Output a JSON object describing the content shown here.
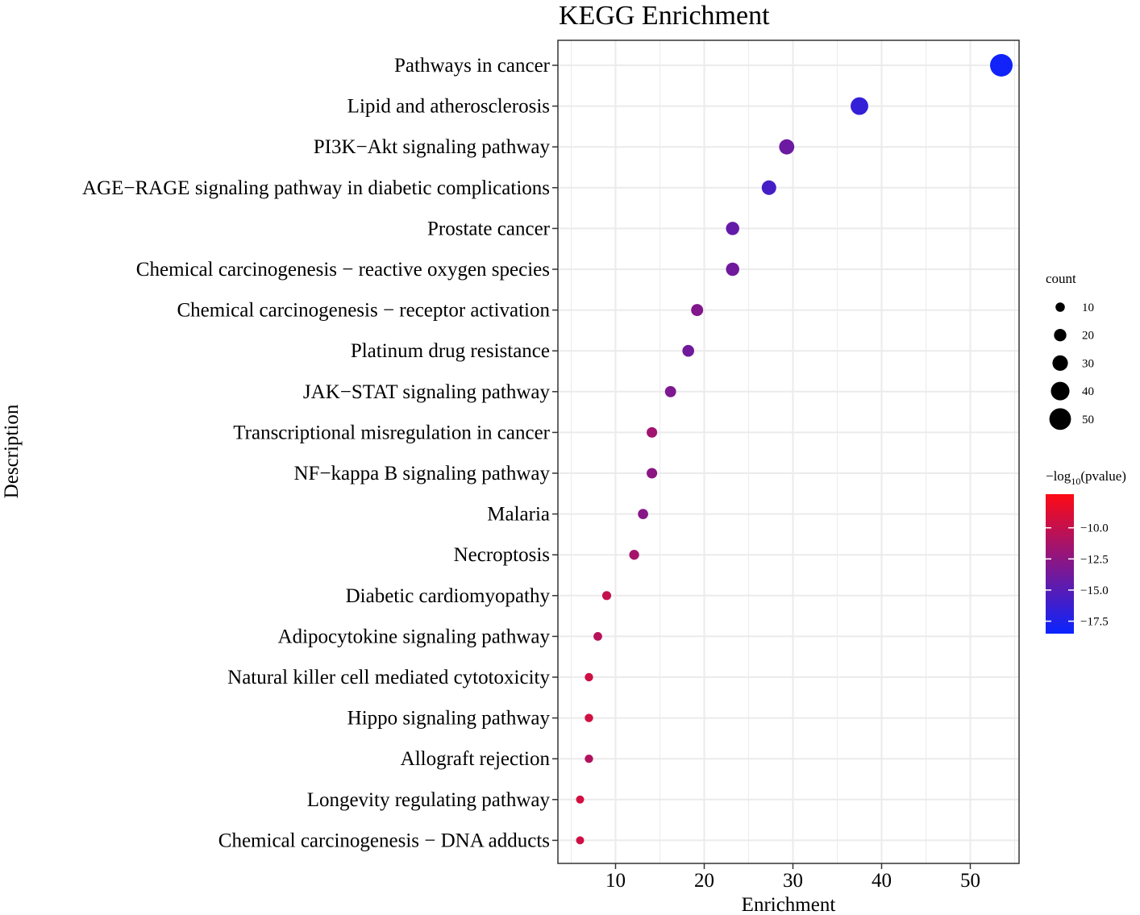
{
  "chart_data": {
    "type": "scatter",
    "title": "KEGG Enrichment",
    "xlabel": "Enrichment",
    "ylabel": "Description",
    "xlim": [
      3.5,
      55.5
    ],
    "xticks": [
      10,
      20,
      30,
      40,
      50
    ],
    "grid": true,
    "categories": [
      "Pathways in cancer",
      "Lipid and atherosclerosis",
      "PI3K−Akt signaling pathway",
      "AGE−RAGE signaling pathway in diabetic complications",
      "Prostate cancer",
      "Chemical carcinogenesis − reactive oxygen species",
      "Chemical carcinogenesis − receptor activation",
      "Platinum drug resistance",
      "JAK−STAT signaling pathway",
      "Transcriptional misregulation in cancer",
      "NF−kappa B signaling pathway",
      "Malaria",
      "Necroptosis",
      "Diabetic cardiomyopathy",
      "Adipocytokine signaling pathway",
      "Natural killer cell mediated cytotoxicity",
      "Hippo signaling pathway",
      "Allograft rejection",
      "Longevity regulating pathway",
      "Chemical carcinogenesis − DNA adducts"
    ],
    "enrichment": [
      53.5,
      37.5,
      29.3,
      27.3,
      23.2,
      23.2,
      19.2,
      18.2,
      16.2,
      14.1,
      14.1,
      13.1,
      12.1,
      9.0,
      8.0,
      7.0,
      7.0,
      7.0,
      6.0,
      6.0
    ],
    "count": [
      53,
      37,
      29,
      27,
      23,
      23,
      19,
      18,
      16,
      14,
      14,
      13,
      12,
      9,
      8,
      7,
      7,
      7,
      6,
      6
    ],
    "neg_log10_pvalue": [
      -18.2,
      -16.6,
      -14.0,
      -15.8,
      -14.4,
      -13.8,
      -13.0,
      -13.8,
      -13.2,
      -11.6,
      -12.6,
      -12.8,
      -11.4,
      -10.0,
      -10.6,
      -9.6,
      -9.4,
      -10.8,
      -9.4,
      -9.6
    ],
    "legend_size": {
      "title": "count",
      "values": [
        10,
        20,
        30,
        40,
        50
      ],
      "labels": [
        "10",
        "20",
        "30",
        "40",
        "50"
      ]
    },
    "legend_color": {
      "title_prefix": "−log",
      "title_sub": "10",
      "title_suffix": "(pvalue)",
      "range": [
        -18.5,
        -7.3
      ],
      "ticks": [
        -10.0,
        -12.5,
        -15.0,
        -17.5
      ],
      "tick_labels": [
        "−10.0",
        "−12.5",
        "−15.0",
        "−17.5"
      ],
      "low_color": "#0a24ff",
      "high_color": "#ff0a14"
    },
    "colors": {
      "grid": "#ebebeb",
      "panel_border": "#333333",
      "axis_tick": "#333333"
    }
  }
}
